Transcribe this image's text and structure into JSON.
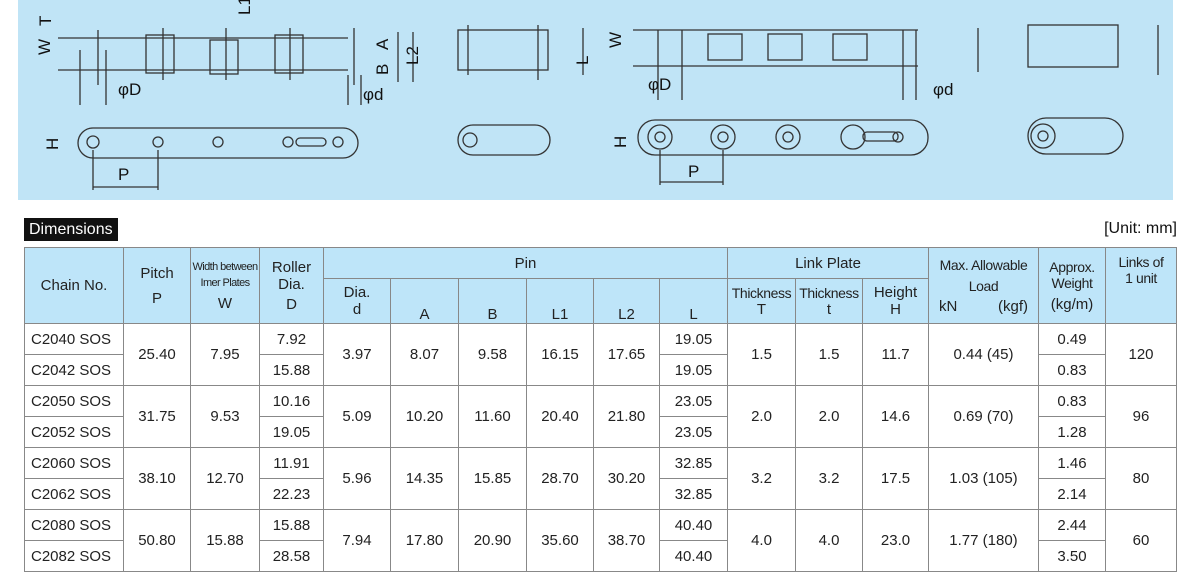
{
  "diagram": {
    "labels": {
      "T": "T",
      "W": "W",
      "L1": "L1",
      "A": "A",
      "B": "B",
      "L2": "L2",
      "L": "L",
      "phiD": "φD",
      "phid": "φd",
      "H": "H",
      "P": "P"
    }
  },
  "section_title": "Dimensions",
  "unit": "[Unit: mm]",
  "headers": {
    "chain_no": "Chain No.",
    "pitch": "Pitch",
    "pitch_sym": "P",
    "width_a": "Width between",
    "width_b": "Imer Plates",
    "width_sym": "W",
    "roller_a": "Roller",
    "roller_b": "Dia.",
    "roller_sym": "D",
    "pin": "Pin",
    "pin_dia": "Dia.",
    "pin_dia_sym": "d",
    "A": "A",
    "B": "B",
    "L1": "L1",
    "L2": "L2",
    "L": "L",
    "link_plate": "Link Plate",
    "thick_T": "Thickness",
    "T": "T",
    "thick_t": "Thickness",
    "t": "t",
    "height": "Height",
    "H": "H",
    "load_a": "Max. Allowable",
    "load_b": "Load",
    "kn": "kN",
    "kgf": "(kgf)",
    "weight_a": "Approx.",
    "weight_b": "Weight",
    "weight_unit": "(kg/m)",
    "links_a": "Links of",
    "links_b": "1 unit"
  },
  "groups": [
    {
      "chains": [
        "C2040 SOS",
        "C2042 SOS"
      ],
      "pitch": "25.40",
      "w": "7.95",
      "D": [
        "7.92",
        "15.88"
      ],
      "d": "3.97",
      "A": "8.07",
      "B": "9.58",
      "L1": "16.15",
      "L2": "17.65",
      "L": [
        "19.05",
        "19.05"
      ],
      "T": "1.5",
      "t": "1.5",
      "H": "11.7",
      "load": "0.44 (45)",
      "weight": [
        "0.49",
        "0.83"
      ],
      "links": "120"
    },
    {
      "chains": [
        "C2050 SOS",
        "C2052 SOS"
      ],
      "pitch": "31.75",
      "w": "9.53",
      "D": [
        "10.16",
        "19.05"
      ],
      "d": "5.09",
      "A": "10.20",
      "B": "11.60",
      "L1": "20.40",
      "L2": "21.80",
      "L": [
        "23.05",
        "23.05"
      ],
      "T": "2.0",
      "t": "2.0",
      "H": "14.6",
      "load": "0.69 (70)",
      "weight": [
        "0.83",
        "1.28"
      ],
      "links": "96"
    },
    {
      "chains": [
        "C2060 SOS",
        "C2062 SOS"
      ],
      "pitch": "38.10",
      "w": "12.70",
      "D": [
        "11.91",
        "22.23"
      ],
      "d": "5.96",
      "A": "14.35",
      "B": "15.85",
      "L1": "28.70",
      "L2": "30.20",
      "L": [
        "32.85",
        "32.85"
      ],
      "T": "3.2",
      "t": "3.2",
      "H": "17.5",
      "load": "1.03 (105)",
      "weight": [
        "1.46",
        "2.14"
      ],
      "links": "80"
    },
    {
      "chains": [
        "C2080 SOS",
        "C2082 SOS"
      ],
      "pitch": "50.80",
      "w": "15.88",
      "D": [
        "15.88",
        "28.58"
      ],
      "d": "7.94",
      "A": "17.80",
      "B": "20.90",
      "L1": "35.60",
      "L2": "38.70",
      "L": [
        "40.40",
        "40.40"
      ],
      "T": "4.0",
      "t": "4.0",
      "H": "23.0",
      "load": "1.77 (180)",
      "weight": [
        "2.44",
        "3.50"
      ],
      "links": "60"
    }
  ]
}
